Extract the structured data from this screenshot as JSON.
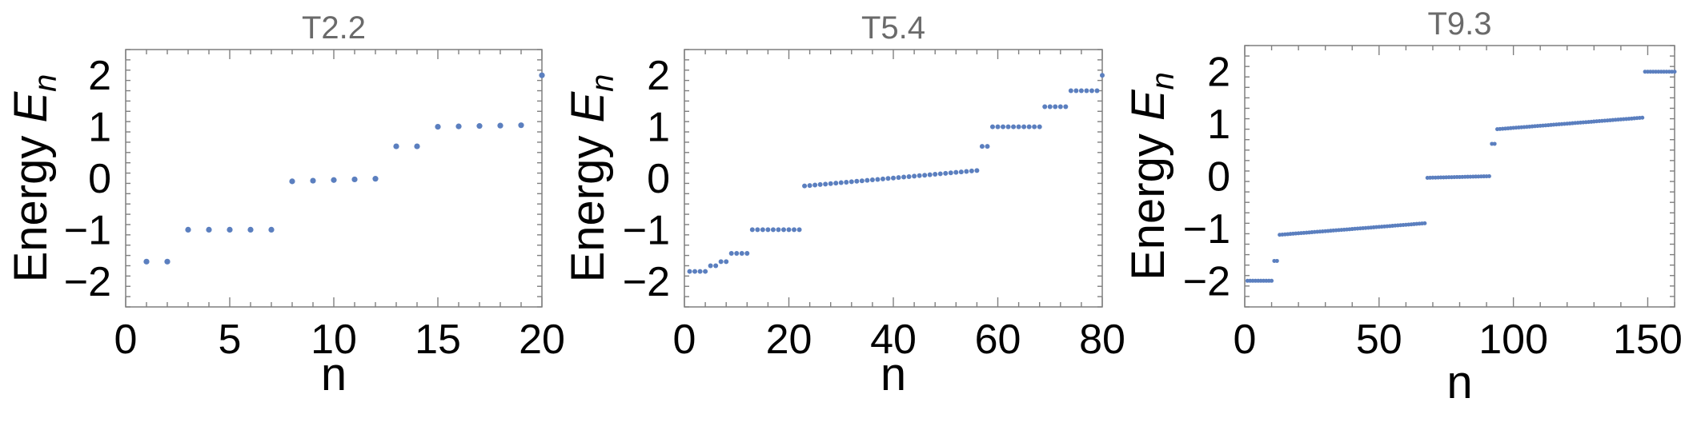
{
  "chart_data": [
    {
      "type": "scatter",
      "title": "T2.2",
      "xlabel": "n",
      "ylabel": "Energy E_n",
      "ylabel_main": "Energy ",
      "ylabel_var": "E",
      "ylabel_sub": "n",
      "xlim": [
        0,
        20
      ],
      "ylim": [
        -2.5,
        2.5
      ],
      "xticks": [
        0,
        5,
        10,
        15,
        20
      ],
      "yticks": [
        -2,
        -1,
        0,
        1,
        2
      ],
      "grid": false,
      "point_color": "#5b7fbf",
      "segments": [
        {
          "n_start": 1,
          "n_end": 2,
          "e_start": -1.62,
          "e_end": -1.62
        },
        {
          "n_start": 3,
          "n_end": 7,
          "e_start": -1.0,
          "e_end": -1.0
        },
        {
          "n_start": 8,
          "n_end": 12,
          "e_start": -0.06,
          "e_end": -0.01
        },
        {
          "n_start": 13,
          "n_end": 14,
          "e_start": 0.62,
          "e_end": 0.62
        },
        {
          "n_start": 15,
          "n_end": 19,
          "e_start": 1.0,
          "e_end": 1.03
        },
        {
          "n_start": 20,
          "n_end": 20,
          "e_start": 2.0,
          "e_end": 2.0
        }
      ]
    },
    {
      "type": "scatter",
      "title": "T5.4",
      "xlabel": "n",
      "ylabel": "Energy E_n",
      "ylabel_main": "Energy ",
      "ylabel_var": "E",
      "ylabel_sub": "n",
      "xlim": [
        0,
        80
      ],
      "ylim": [
        -2.5,
        2.5
      ],
      "xticks": [
        0,
        20,
        40,
        60,
        80
      ],
      "yticks": [
        -2,
        -1,
        0,
        1,
        2
      ],
      "grid": false,
      "point_color": "#5b7fbf",
      "segments": [
        {
          "n_start": 1,
          "n_end": 4,
          "e_start": -1.81,
          "e_end": -1.81
        },
        {
          "n_start": 5,
          "n_end": 6,
          "e_start": -1.7,
          "e_end": -1.7
        },
        {
          "n_start": 7,
          "n_end": 8,
          "e_start": -1.62,
          "e_end": -1.62
        },
        {
          "n_start": 9,
          "n_end": 12,
          "e_start": -1.46,
          "e_end": -1.46
        },
        {
          "n_start": 13,
          "n_end": 22,
          "e_start": -1.0,
          "e_end": -1.0
        },
        {
          "n_start": 23,
          "n_end": 56,
          "e_start": -0.15,
          "e_end": 0.15
        },
        {
          "n_start": 57,
          "n_end": 58,
          "e_start": 0.62,
          "e_end": 0.62
        },
        {
          "n_start": 59,
          "n_end": 68,
          "e_start": 1.0,
          "e_end": 1.0
        },
        {
          "n_start": 69,
          "n_end": 73,
          "e_start": 1.39,
          "e_end": 1.39
        },
        {
          "n_start": 74,
          "n_end": 79,
          "e_start": 1.7,
          "e_end": 1.7
        },
        {
          "n_start": 80,
          "n_end": 80,
          "e_start": 2.0,
          "e_end": 2.0
        }
      ]
    },
    {
      "type": "scatter",
      "title": "T9.3",
      "xlabel": "n",
      "ylabel": "Energy E_n",
      "ylabel_main": "Energy ",
      "ylabel_var": "E",
      "ylabel_sub": "n",
      "xlim": [
        0,
        160
      ],
      "ylim": [
        -2.5,
        2.5
      ],
      "xticks": [
        0,
        50,
        100,
        150
      ],
      "yticks": [
        -2,
        -1,
        0,
        1,
        2
      ],
      "grid": false,
      "point_color": "#5b7fbf",
      "segments": [
        {
          "n_start": 1,
          "n_end": 10,
          "e_start": -2.0,
          "e_end": -2.0
        },
        {
          "n_start": 11,
          "n_end": 12,
          "e_start": -1.62,
          "e_end": -1.62
        },
        {
          "n_start": 13,
          "n_end": 67,
          "e_start": -1.12,
          "e_end": -0.9
        },
        {
          "n_start": 68,
          "n_end": 91,
          "e_start": -0.03,
          "e_end": 0.0
        },
        {
          "n_start": 92,
          "n_end": 93,
          "e_start": 0.62,
          "e_end": 0.62
        },
        {
          "n_start": 94,
          "n_end": 148,
          "e_start": 0.9,
          "e_end": 1.12
        },
        {
          "n_start": 149,
          "n_end": 160,
          "e_start": 2.0,
          "e_end": 2.0
        }
      ]
    }
  ]
}
